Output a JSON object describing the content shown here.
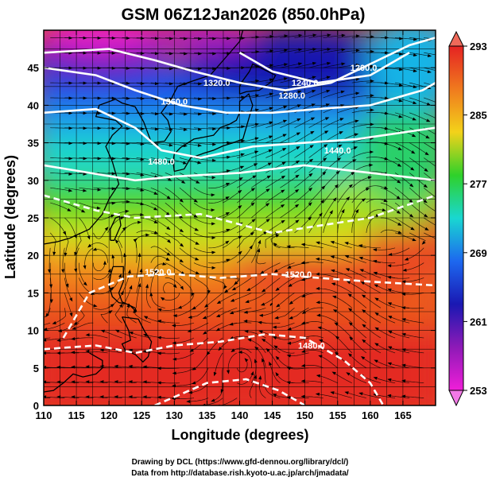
{
  "title": "GSM 06Z12Jan2026 (850.0hPa)",
  "axes": {
    "xlabel": "Longitude (degrees)",
    "ylabel": "Latitude  (degrees)",
    "x_ticks": [
      "110",
      "115",
      "120",
      "125",
      "130",
      "135",
      "140",
      "145",
      "150",
      "155",
      "160",
      "165"
    ],
    "y_ticks": [
      "0",
      "5",
      "10",
      "15",
      "20",
      "25",
      "30",
      "35",
      "40",
      "45"
    ]
  },
  "colorbar": {
    "labels": [
      "293",
      "285",
      "277",
      "269",
      "261",
      "253"
    ],
    "colors": [
      "#e52323",
      "#f07a1e",
      "#f3d21a",
      "#2fd12a",
      "#19d7d1",
      "#1d68ef",
      "#1a18b2",
      "#8e1ab7",
      "#f01ed8"
    ]
  },
  "contour_labels": [
    {
      "text": "1200.0",
      "lon": 159.0,
      "lat": 45.0
    },
    {
      "text": "1240.0",
      "lon": 150.0,
      "lat": 43.0
    },
    {
      "text": "1280.0",
      "lon": 148.0,
      "lat": 41.3
    },
    {
      "text": "1320.0",
      "lon": 136.5,
      "lat": 43.0
    },
    {
      "text": "1360.0",
      "lon": 130.0,
      "lat": 40.5
    },
    {
      "text": "1440.0",
      "lon": 155.0,
      "lat": 34.0
    },
    {
      "text": "1480.0",
      "lon": 128.0,
      "lat": 32.5
    },
    {
      "text": "1520.0",
      "lon": 127.5,
      "lat": 17.8
    },
    {
      "text": "1520.0",
      "lon": 149.0,
      "lat": 17.5
    },
    {
      "text": "1480.0",
      "lon": 151.0,
      "lat": 8.0
    }
  ],
  "footer": [
    "Drawing by DCL (https://www.gfd-dennou.org/library/dcl/)",
    "Data from http://database.rish.kyoto-u.ac.jp/arch/jmadata/"
  ],
  "map_extent": {
    "lon": [
      110,
      170
    ],
    "lat": [
      0,
      50
    ]
  }
}
